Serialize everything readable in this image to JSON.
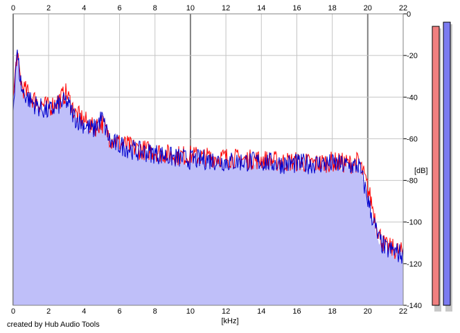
{
  "chart_data": {
    "type": "area",
    "xlabel": "[kHz]",
    "ylabel": "[dB]",
    "xlim": [
      0,
      22
    ],
    "ylim": [
      -140,
      0
    ],
    "x_ticks": [
      "0",
      "2",
      "4",
      "6",
      "8",
      "10",
      "12",
      "14",
      "16",
      "18",
      "20",
      "22"
    ],
    "y_ticks": [
      "0",
      "-20",
      "-40",
      "-60",
      "-80",
      "-100",
      "-120",
      "-140"
    ],
    "grid": true,
    "series": [
      {
        "color": "#ff0000",
        "x": [
          0,
          0.2,
          0.5,
          1,
          1.5,
          2,
          2.5,
          3,
          3.5,
          4,
          4.5,
          5,
          5.5,
          6,
          7,
          8,
          9,
          10,
          11,
          12,
          13,
          14,
          15,
          16,
          17,
          18,
          19,
          19.5,
          19.8,
          20.2,
          20.6,
          21,
          21.5,
          22
        ],
        "y": [
          -42,
          -20,
          -35,
          -40,
          -43,
          -45,
          -42,
          -38,
          -48,
          -51,
          -55,
          -52,
          -60,
          -62,
          -65,
          -66,
          -68,
          -68,
          -69,
          -69,
          -70,
          -70,
          -71,
          -71,
          -72,
          -71,
          -72,
          -71,
          -78,
          -90,
          -105,
          -112,
          -113,
          -115
        ]
      },
      {
        "color": "#0000cc",
        "x": [
          0,
          0.2,
          0.5,
          1,
          1.5,
          2,
          2.5,
          3,
          3.5,
          4,
          4.5,
          5,
          5.5,
          6,
          7,
          8,
          9,
          10,
          11,
          12,
          13,
          14,
          15,
          16,
          17,
          18,
          19,
          19.5,
          19.8,
          20.2,
          20.6,
          21,
          21.5,
          22
        ],
        "y": [
          -45,
          -18,
          -37,
          -42,
          -45,
          -47,
          -44,
          -42,
          -50,
          -53,
          -56,
          -50,
          -62,
          -63,
          -66,
          -67,
          -69,
          -70,
          -70,
          -71,
          -71,
          -71,
          -72,
          -72,
          -72,
          -72,
          -73,
          -73,
          -82,
          -96,
          -108,
          -113,
          -114,
          -116
        ]
      }
    ],
    "level_meters": [
      {
        "color": "#f08080",
        "level_db": -6
      },
      {
        "color": "#7b7bf0",
        "level_db": -4
      }
    ]
  },
  "credit": "created by Hub Audio Tools"
}
